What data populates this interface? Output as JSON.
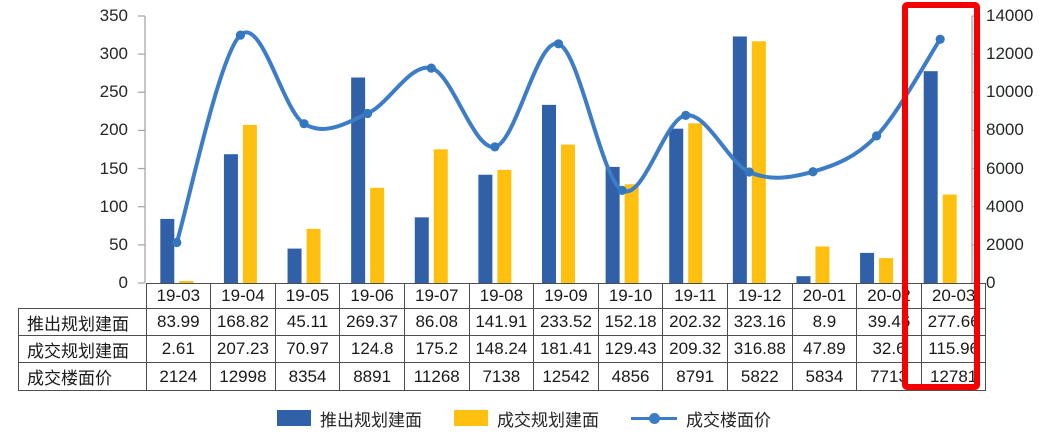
{
  "chart_data": {
    "type": "combo",
    "categories": [
      "19-03",
      "19-04",
      "19-05",
      "19-06",
      "19-07",
      "19-08",
      "19-09",
      "19-10",
      "19-11",
      "19-12",
      "20-01",
      "20-02",
      "20-03"
    ],
    "series": [
      {
        "name": "推出规划建面",
        "type": "bar",
        "axis": "left",
        "color": "#3060A8",
        "values": [
          83.99,
          168.82,
          45.11,
          269.37,
          86.08,
          141.91,
          233.52,
          152.18,
          202.32,
          323.16,
          8.9,
          39.46,
          277.66
        ]
      },
      {
        "name": "成交规划建面",
        "type": "bar",
        "axis": "left",
        "color": "#FFC010",
        "values": [
          2.61,
          207.23,
          70.97,
          124.8,
          175.2,
          148.24,
          181.41,
          129.43,
          209.32,
          316.88,
          47.89,
          32.6,
          115.96
        ]
      },
      {
        "name": "成交楼面价",
        "type": "line",
        "axis": "right",
        "color": "#3D7DC8",
        "values": [
          2124,
          12998,
          8354,
          8891,
          11268,
          7138,
          12542,
          4856,
          8791,
          5822,
          5834,
          7713,
          12781
        ]
      }
    ],
    "left_axis": {
      "min": 0,
      "max": 350,
      "step": 50,
      "ticks": [
        "0",
        "50",
        "100",
        "150",
        "200",
        "250",
        "300",
        "350"
      ]
    },
    "right_axis": {
      "min": 0,
      "max": 14000,
      "step": 2000,
      "ticks": [
        "0",
        "2000",
        "4000",
        "6000",
        "8000",
        "10000",
        "12000",
        "14000"
      ]
    },
    "grid": false,
    "legend_position": "bottom",
    "title": ""
  },
  "table": {
    "row_labels": [
      "推出规划建面",
      "成交规划建面",
      "成交楼面价"
    ],
    "rows": [
      [
        "83.99",
        "168.82",
        "45.11",
        "269.37",
        "86.08",
        "141.91",
        "233.52",
        "152.18",
        "202.32",
        "323.16",
        "8.9",
        "39.46",
        "277.66"
      ],
      [
        "2.61",
        "207.23",
        "70.97",
        "124.8",
        "175.2",
        "148.24",
        "181.41",
        "129.43",
        "209.32",
        "316.88",
        "47.89",
        "32.6",
        "115.96"
      ],
      [
        "2124",
        "12998",
        "8354",
        "8891",
        "11268",
        "7138",
        "12542",
        "4856",
        "8791",
        "5822",
        "5834",
        "7713",
        "12781"
      ]
    ]
  },
  "legend": {
    "items": [
      {
        "label": "推出规划建面",
        "color": "#3060A8",
        "marker": "square"
      },
      {
        "label": "成交规划建面",
        "color": "#FFC010",
        "marker": "square"
      },
      {
        "label": "成交楼面价",
        "color": "#3D7DC8",
        "marker": "line-dot"
      }
    ]
  },
  "highlight": {
    "column": "20-03",
    "color": "#F40000"
  },
  "colors": {
    "axis_line": "#A8A8A8",
    "table_border": "#4d4d4d",
    "text": "#1f1f1f"
  }
}
